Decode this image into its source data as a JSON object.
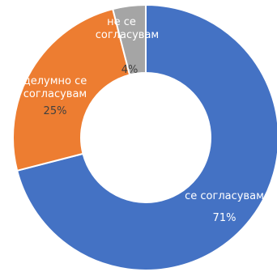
{
  "chart_data": {
    "type": "pie",
    "donut": true,
    "title": "",
    "slices": [
      {
        "label": "се согласувам",
        "value": 71,
        "value_label": "71%",
        "color": "#4472C4"
      },
      {
        "label": "делумно се согласувам",
        "label_lines": [
          "делумно се",
          "согласувам"
        ],
        "value": 25,
        "value_label": "25%",
        "color": "#ED7D31"
      },
      {
        "label": "не се согласувам",
        "label_lines": [
          "не се",
          "согласувам"
        ],
        "value": 4,
        "value_label": "4%",
        "color": "#A5A5A5"
      }
    ],
    "legend": "none"
  }
}
